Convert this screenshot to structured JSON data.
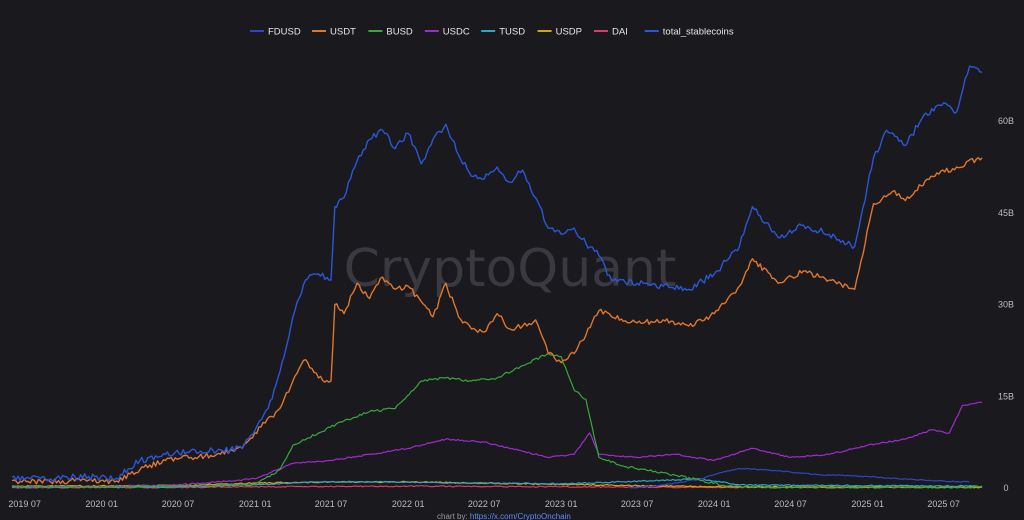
{
  "chart_data": {
    "type": "line",
    "title": "",
    "xlabel": "",
    "ylabel": "",
    "watermark": "CryptoQuant",
    "source": {
      "prefix": "chart by: ",
      "link": "https://x.com/CryptoOnchain"
    },
    "legend_position": "top-center",
    "grid": false,
    "ylim": [
      0,
      70
    ],
    "y_unit": "B",
    "y_ticks": [
      {
        "value": 0,
        "label": "0"
      },
      {
        "value": 15,
        "label": "15B"
      },
      {
        "value": 30,
        "label": "30B"
      },
      {
        "value": 45,
        "label": "45B"
      },
      {
        "value": 60,
        "label": "60B"
      }
    ],
    "x_ticks": [
      {
        "date": "2019-07",
        "label": "2019 07"
      },
      {
        "date": "2020-01",
        "label": "2020 01"
      },
      {
        "date": "2020-07",
        "label": "2020 07"
      },
      {
        "date": "2021-01",
        "label": "2021 01"
      },
      {
        "date": "2021-07",
        "label": "2021 07"
      },
      {
        "date": "2022-01",
        "label": "2022 01"
      },
      {
        "date": "2022-07",
        "label": "2022 07"
      },
      {
        "date": "2023-01",
        "label": "2023 01"
      },
      {
        "date": "2023-07",
        "label": "2023 07"
      },
      {
        "date": "2024-01",
        "label": "2024 01"
      },
      {
        "date": "2024-07",
        "label": "2024 07"
      },
      {
        "date": "2025-01",
        "label": "2025 01"
      },
      {
        "date": "2025-07",
        "label": "2025 07"
      }
    ],
    "xlim": [
      "2019-06-01",
      "2025-10-15"
    ],
    "series": [
      {
        "name": "FDUSD",
        "color": "#2d46c4",
        "points": [
          [
            "2023-06-15",
            0
          ],
          [
            "2023-09-01",
            0.5
          ],
          [
            "2023-12-01",
            1.5
          ],
          [
            "2024-01-15",
            2.5
          ],
          [
            "2024-03-01",
            3.2
          ],
          [
            "2024-06-01",
            2.8
          ],
          [
            "2024-09-01",
            2.2
          ],
          [
            "2024-12-01",
            2.0
          ],
          [
            "2025-03-01",
            1.6
          ],
          [
            "2025-06-01",
            1.2
          ],
          [
            "2025-09-01",
            1.0
          ]
        ]
      },
      {
        "name": "USDT",
        "color": "#e0762a",
        "points": [
          [
            "2019-06-01",
            1.2
          ],
          [
            "2019-09-01",
            1.0
          ],
          [
            "2019-12-01",
            1.3
          ],
          [
            "2020-02-01",
            1.0
          ],
          [
            "2020-04-01",
            3.0
          ],
          [
            "2020-06-01",
            4.5
          ],
          [
            "2020-08-01",
            5.0
          ],
          [
            "2020-10-01",
            5.5
          ],
          [
            "2020-12-01",
            6.5
          ],
          [
            "2021-01-15",
            10.0
          ],
          [
            "2021-03-01",
            13.0
          ],
          [
            "2021-04-01",
            17.5
          ],
          [
            "2021-05-01",
            21.0
          ],
          [
            "2021-06-01",
            18.0
          ],
          [
            "2021-07-01",
            17.5
          ],
          [
            "2021-07-10",
            30.0
          ],
          [
            "2021-08-01",
            28.5
          ],
          [
            "2021-09-01",
            33.5
          ],
          [
            "2021-10-01",
            31.0
          ],
          [
            "2021-11-01",
            34.5
          ],
          [
            "2021-12-01",
            32.5
          ],
          [
            "2022-01-01",
            33.0
          ],
          [
            "2022-02-01",
            30.5
          ],
          [
            "2022-03-01",
            28.0
          ],
          [
            "2022-04-01",
            33.5
          ],
          [
            "2022-05-01",
            28.0
          ],
          [
            "2022-06-01",
            26.0
          ],
          [
            "2022-07-01",
            25.5
          ],
          [
            "2022-08-01",
            28.5
          ],
          [
            "2022-09-01",
            26.0
          ],
          [
            "2022-10-01",
            26.5
          ],
          [
            "2022-11-01",
            27.5
          ],
          [
            "2022-12-01",
            22.0
          ],
          [
            "2023-01-01",
            20.5
          ],
          [
            "2023-02-01",
            22.0
          ],
          [
            "2023-03-01",
            25.0
          ],
          [
            "2023-04-01",
            29.0
          ],
          [
            "2023-05-01",
            28.0
          ],
          [
            "2023-07-01",
            27.0
          ],
          [
            "2023-09-01",
            27.5
          ],
          [
            "2023-11-01",
            26.5
          ],
          [
            "2024-01-01",
            28.5
          ],
          [
            "2024-03-01",
            33.0
          ],
          [
            "2024-04-01",
            37.5
          ],
          [
            "2024-06-01",
            33.5
          ],
          [
            "2024-08-01",
            35.5
          ],
          [
            "2024-10-01",
            34.0
          ],
          [
            "2024-12-01",
            32.5
          ],
          [
            "2025-01-15",
            46.5
          ],
          [
            "2025-03-01",
            48.5
          ],
          [
            "2025-04-01",
            47.0
          ],
          [
            "2025-06-01",
            51.0
          ],
          [
            "2025-08-01",
            52.5
          ],
          [
            "2025-10-01",
            54.0
          ]
        ]
      },
      {
        "name": "BUSD",
        "color": "#37a83a",
        "points": [
          [
            "2019-06-01",
            0.2
          ],
          [
            "2020-01-01",
            0.2
          ],
          [
            "2020-07-01",
            0.3
          ],
          [
            "2021-01-01",
            0.6
          ],
          [
            "2021-03-01",
            3.0
          ],
          [
            "2021-04-01",
            7.0
          ],
          [
            "2021-06-01",
            9.0
          ],
          [
            "2021-08-01",
            11.0
          ],
          [
            "2021-10-01",
            12.5
          ],
          [
            "2021-12-01",
            13.0
          ],
          [
            "2022-02-01",
            17.5
          ],
          [
            "2022-04-01",
            18.0
          ],
          [
            "2022-06-01",
            17.5
          ],
          [
            "2022-08-01",
            18.0
          ],
          [
            "2022-10-01",
            20.0
          ],
          [
            "2022-12-01",
            22.0
          ],
          [
            "2023-01-01",
            21.5
          ],
          [
            "2023-02-01",
            16.0
          ],
          [
            "2023-03-01",
            14.5
          ],
          [
            "2023-04-01",
            5.0
          ],
          [
            "2023-06-01",
            3.5
          ],
          [
            "2023-09-01",
            2.5
          ],
          [
            "2023-12-01",
            1.2
          ],
          [
            "2024-02-01",
            0.3
          ],
          [
            "2024-06-01",
            0.1
          ],
          [
            "2025-10-01",
            0.1
          ]
        ]
      },
      {
        "name": "USDC",
        "color": "#a02ad0",
        "points": [
          [
            "2019-06-01",
            0.2
          ],
          [
            "2020-01-01",
            0.2
          ],
          [
            "2020-07-01",
            0.5
          ],
          [
            "2021-01-01",
            1.5
          ],
          [
            "2021-04-01",
            4.0
          ],
          [
            "2021-07-01",
            4.5
          ],
          [
            "2021-10-01",
            5.5
          ],
          [
            "2022-01-01",
            6.5
          ],
          [
            "2022-04-01",
            8.0
          ],
          [
            "2022-07-01",
            7.5
          ],
          [
            "2022-10-01",
            6.0
          ],
          [
            "2022-12-01",
            5.0
          ],
          [
            "2023-02-01",
            5.5
          ],
          [
            "2023-03-10",
            9.0
          ],
          [
            "2023-04-01",
            5.5
          ],
          [
            "2023-07-01",
            5.0
          ],
          [
            "2023-10-01",
            5.5
          ],
          [
            "2024-01-01",
            4.5
          ],
          [
            "2024-04-01",
            6.5
          ],
          [
            "2024-07-01",
            5.0
          ],
          [
            "2024-10-01",
            5.5
          ],
          [
            "2025-01-01",
            7.0
          ],
          [
            "2025-04-01",
            8.0
          ],
          [
            "2025-06-01",
            9.5
          ],
          [
            "2025-07-15",
            9.0
          ],
          [
            "2025-08-15",
            13.5
          ],
          [
            "2025-10-01",
            14.0
          ]
        ]
      },
      {
        "name": "TUSD",
        "color": "#2aa6c6",
        "points": [
          [
            "2019-06-01",
            0.1
          ],
          [
            "2020-07-01",
            0.2
          ],
          [
            "2021-01-01",
            0.5
          ],
          [
            "2021-06-01",
            1.0
          ],
          [
            "2021-12-01",
            1.0
          ],
          [
            "2022-06-01",
            0.8
          ],
          [
            "2023-01-01",
            0.7
          ],
          [
            "2023-06-01",
            1.0
          ],
          [
            "2023-12-01",
            1.5
          ],
          [
            "2024-03-01",
            0.5
          ],
          [
            "2025-10-01",
            0.3
          ]
        ]
      },
      {
        "name": "USDP",
        "color": "#d9a30f",
        "points": [
          [
            "2019-06-01",
            0.3
          ],
          [
            "2020-07-01",
            0.4
          ],
          [
            "2021-01-01",
            0.8
          ],
          [
            "2021-07-01",
            1.0
          ],
          [
            "2022-01-01",
            1.0
          ],
          [
            "2022-07-01",
            0.8
          ],
          [
            "2023-01-01",
            0.6
          ],
          [
            "2023-07-01",
            0.4
          ],
          [
            "2024-01-01",
            0.2
          ],
          [
            "2025-10-01",
            0.1
          ]
        ]
      },
      {
        "name": "DAI",
        "color": "#d83a6a",
        "points": [
          [
            "2019-06-01",
            0.05
          ],
          [
            "2020-07-01",
            0.1
          ],
          [
            "2021-01-01",
            0.2
          ],
          [
            "2022-01-01",
            0.3
          ],
          [
            "2023-01-01",
            0.2
          ],
          [
            "2024-01-01",
            0.1
          ],
          [
            "2025-10-01",
            0.1
          ]
        ]
      },
      {
        "name": "total_stablecoins",
        "color": "#2a57d8",
        "points": [
          [
            "2019-06-01",
            1.8
          ],
          [
            "2019-09-01",
            1.5
          ],
          [
            "2019-12-01",
            1.9
          ],
          [
            "2020-02-01",
            1.4
          ],
          [
            "2020-04-01",
            4.5
          ],
          [
            "2020-06-01",
            5.5
          ],
          [
            "2020-08-01",
            6.2
          ],
          [
            "2020-10-01",
            6.0
          ],
          [
            "2020-12-01",
            6.5
          ],
          [
            "2021-01-01",
            9.5
          ],
          [
            "2021-02-01",
            13.0
          ],
          [
            "2021-03-01",
            19.0
          ],
          [
            "2021-04-01",
            28.0
          ],
          [
            "2021-05-01",
            34.0
          ],
          [
            "2021-06-01",
            35.0
          ],
          [
            "2021-07-01",
            34.0
          ],
          [
            "2021-07-10",
            46.0
          ],
          [
            "2021-08-01",
            47.5
          ],
          [
            "2021-09-01",
            53.5
          ],
          [
            "2021-10-01",
            57.0
          ],
          [
            "2021-11-01",
            58.5
          ],
          [
            "2021-12-01",
            55.5
          ],
          [
            "2022-01-01",
            58.0
          ],
          [
            "2022-02-01",
            53.0
          ],
          [
            "2022-03-01",
            57.0
          ],
          [
            "2022-04-01",
            59.5
          ],
          [
            "2022-05-01",
            54.5
          ],
          [
            "2022-06-01",
            51.0
          ],
          [
            "2022-07-01",
            50.5
          ],
          [
            "2022-08-01",
            52.5
          ],
          [
            "2022-09-01",
            50.0
          ],
          [
            "2022-10-01",
            52.0
          ],
          [
            "2022-11-01",
            47.5
          ],
          [
            "2022-12-01",
            42.5
          ],
          [
            "2023-01-01",
            41.5
          ],
          [
            "2023-02-01",
            42.5
          ],
          [
            "2023-03-01",
            40.0
          ],
          [
            "2023-04-01",
            38.0
          ],
          [
            "2023-05-01",
            34.0
          ],
          [
            "2023-07-01",
            33.5
          ],
          [
            "2023-09-01",
            33.0
          ],
          [
            "2023-11-01",
            32.5
          ],
          [
            "2024-01-01",
            35.0
          ],
          [
            "2024-03-01",
            39.5
          ],
          [
            "2024-04-01",
            46.0
          ],
          [
            "2024-06-01",
            41.0
          ],
          [
            "2024-08-01",
            43.0
          ],
          [
            "2024-10-01",
            41.5
          ],
          [
            "2024-12-01",
            39.5
          ],
          [
            "2025-01-15",
            54.0
          ],
          [
            "2025-02-15",
            58.5
          ],
          [
            "2025-04-01",
            56.0
          ],
          [
            "2025-05-15",
            61.0
          ],
          [
            "2025-07-01",
            63.0
          ],
          [
            "2025-08-01",
            61.5
          ],
          [
            "2025-09-01",
            69.0
          ],
          [
            "2025-10-01",
            68.0
          ]
        ]
      }
    ]
  }
}
